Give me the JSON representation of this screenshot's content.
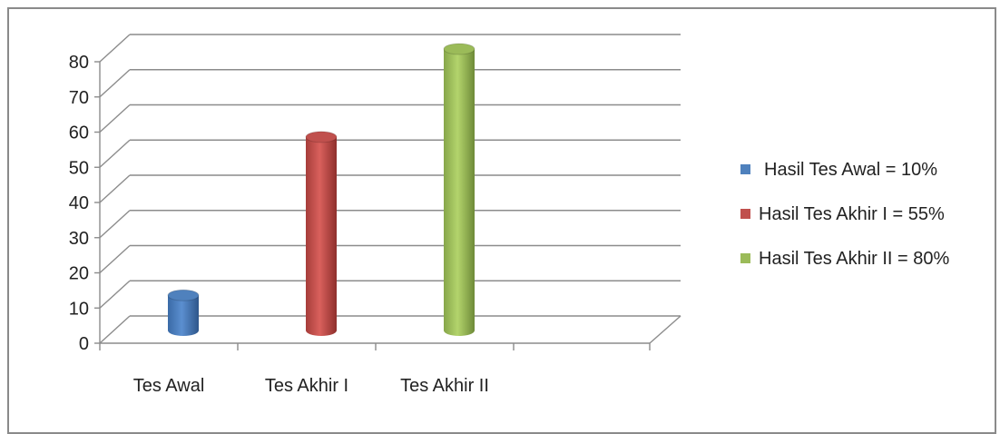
{
  "chart_data": {
    "type": "bar",
    "style": "3d-cylinder",
    "categories": [
      "Tes Awal",
      "Tes Akhir I",
      "Tes Akhir II"
    ],
    "values": [
      10,
      55,
      80
    ],
    "colors": [
      "#4f81bd",
      "#c0504d",
      "#9bbb59"
    ],
    "ylim": [
      0,
      80
    ],
    "yticks": [
      "0",
      "10",
      "20",
      "30",
      "40",
      "50",
      "60",
      "70",
      "80"
    ],
    "grid": true,
    "legend_position": "right",
    "legend": [
      {
        "label": "Hasil Tes Awal = 10%",
        "color": "#4f81bd"
      },
      {
        "label": "Hasil Tes Akhir I = 55%",
        "color": "#c0504d"
      },
      {
        "label": "Hasil Tes Akhir II = 80%",
        "color": "#9bbb59"
      }
    ]
  }
}
